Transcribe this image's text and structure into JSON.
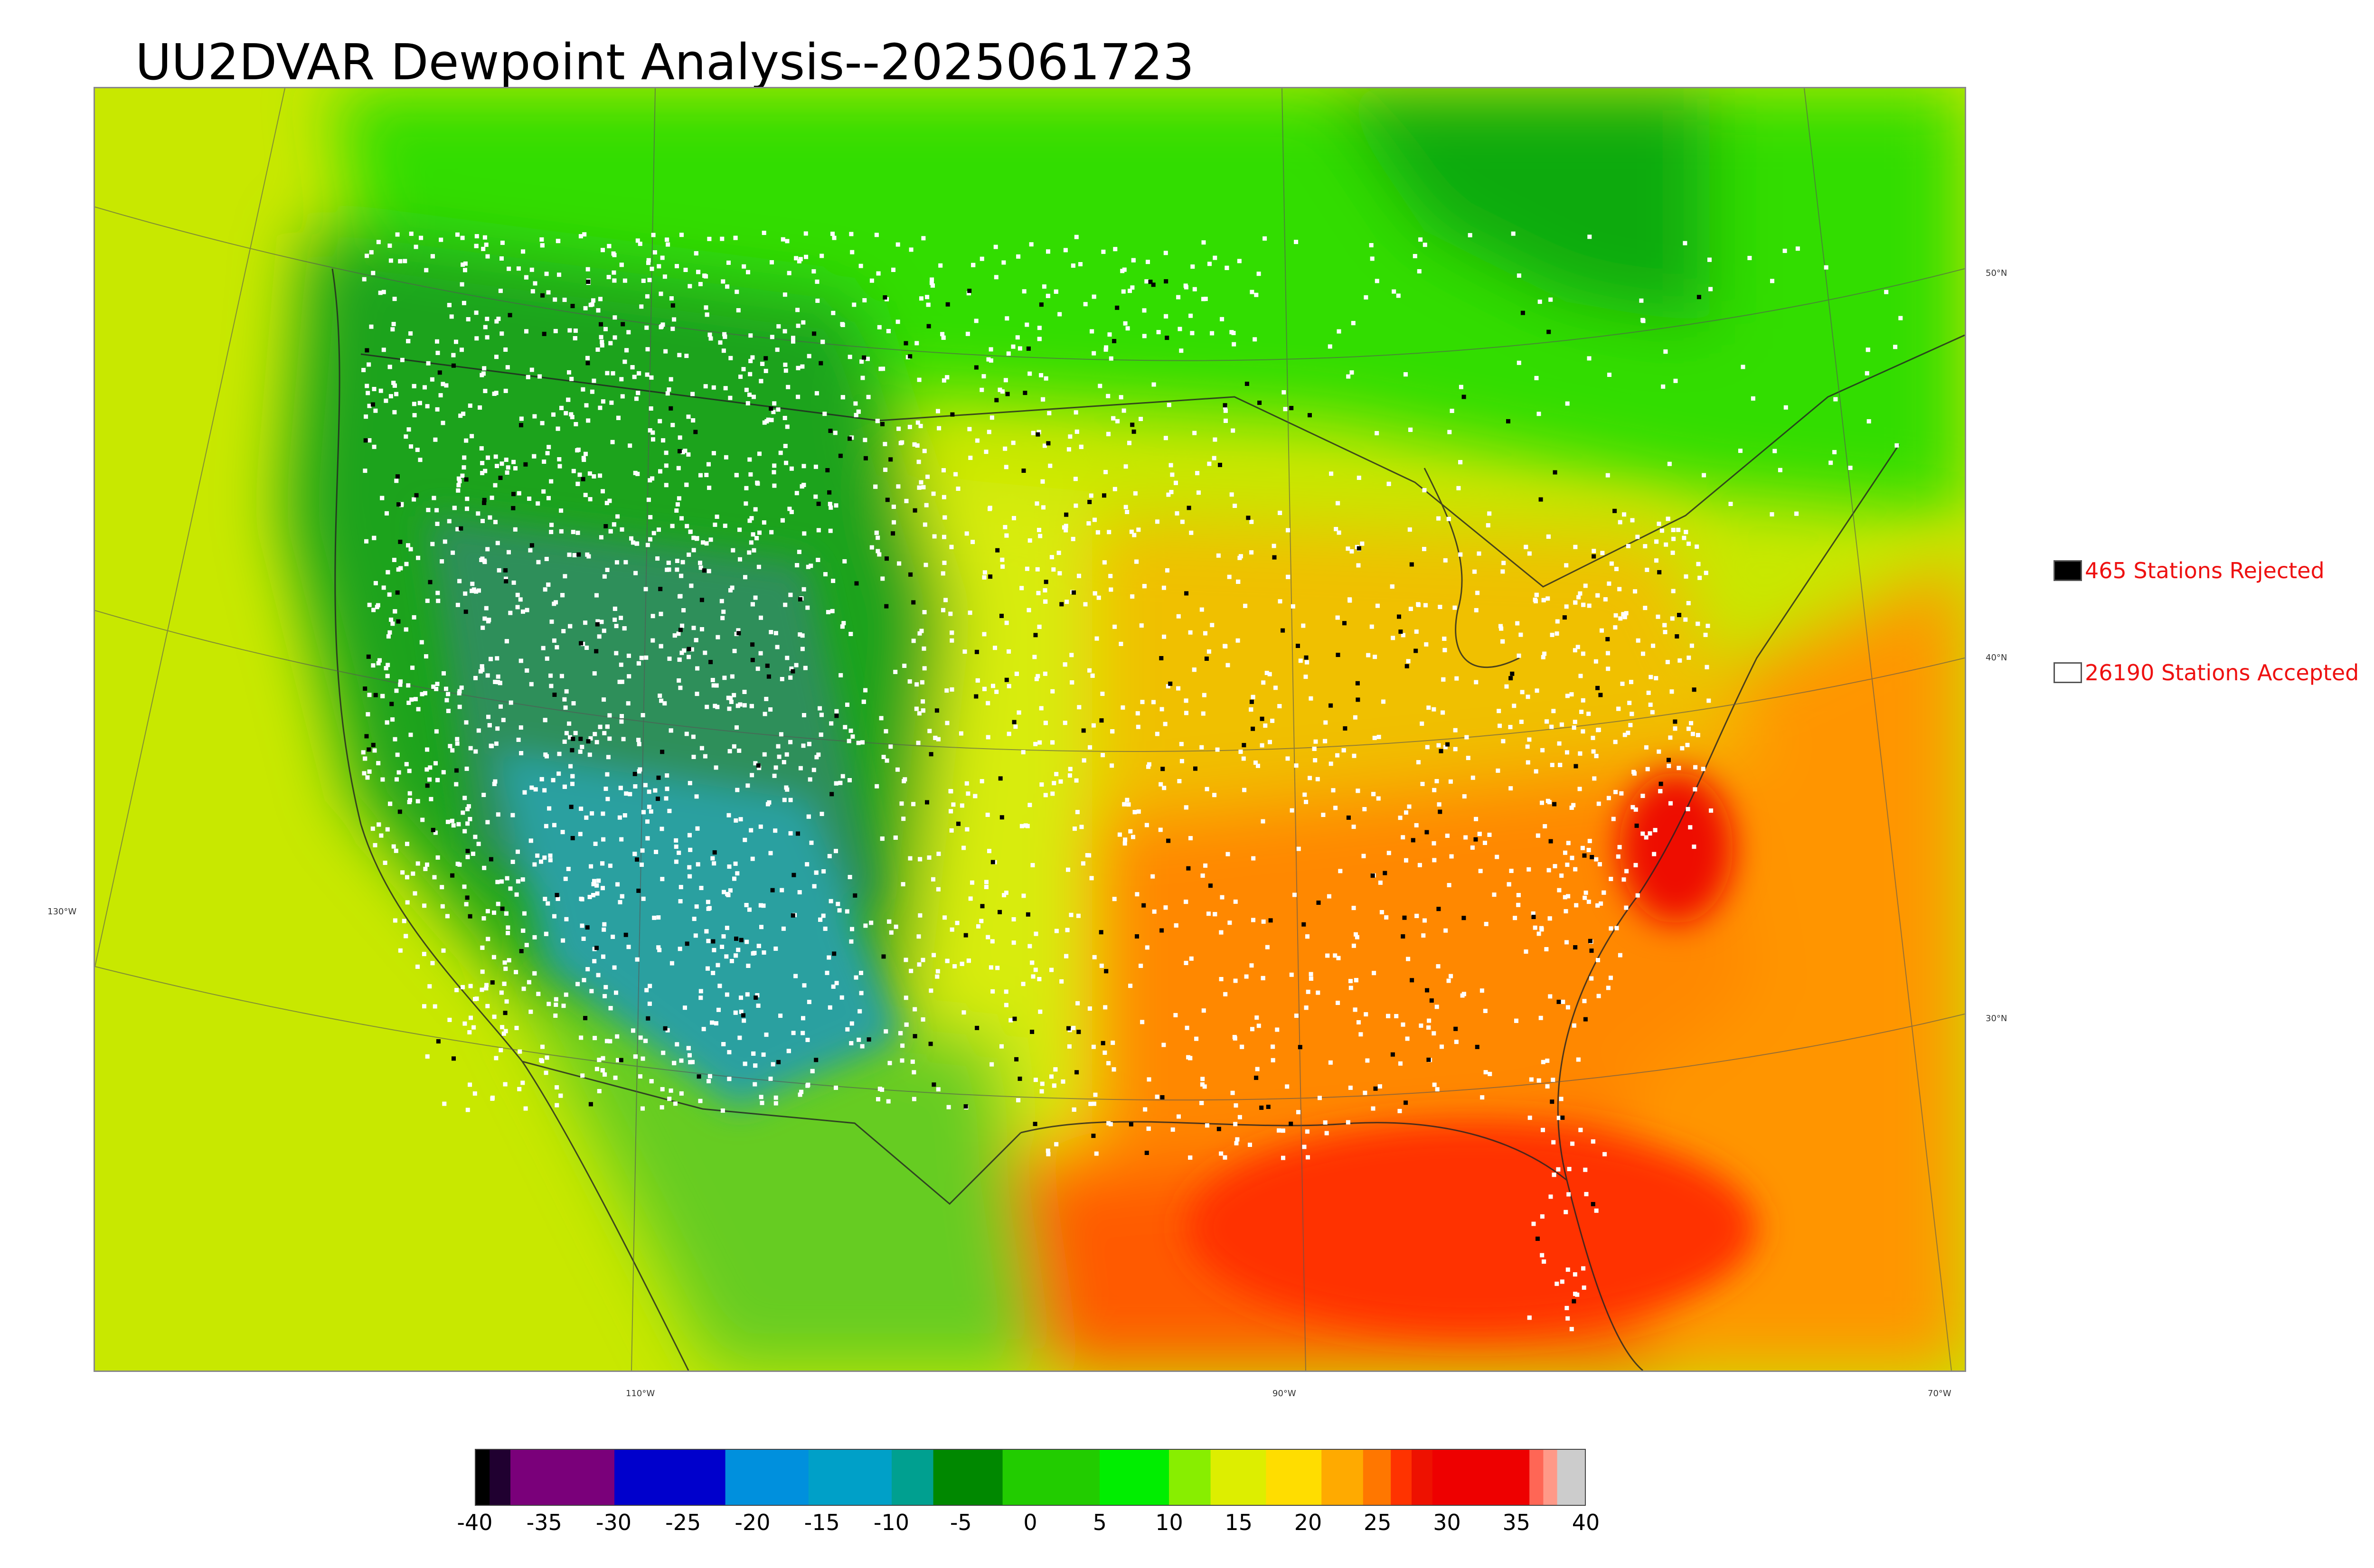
{
  "title": "UU2DVAR Dewpoint Analysis--2025061723",
  "legend": {
    "rejected": {
      "label": "465 Stations Rejected",
      "swatch_color": "#000000"
    },
    "accepted": {
      "label": "26190 Stations Accepted",
      "swatch_color": "#ffffff"
    }
  },
  "map": {
    "latitude_labels": [
      "50°N",
      "40°N",
      "30°N"
    ],
    "longitude_labels": [
      "130°W",
      "110°W",
      "90°W",
      "70°W"
    ],
    "field_colors": {
      "pacific": "#c8e800",
      "northwest_land": "#1fa31f",
      "great_basin": "#2f8f5a",
      "four_corners": "#2aa0a0",
      "plains": "#d8ec10",
      "midwest": "#f0c000",
      "southeast": "#ff8800",
      "gulf": "#ff5a00",
      "atlantic": "#ff9500",
      "canada": "#33dd00",
      "hudson": "#11aa11",
      "mexico": "#66cc22"
    }
  },
  "colorbar": {
    "ticks": [
      "-40",
      "-35",
      "-30",
      "-25",
      "-20",
      "-15",
      "-10",
      "-5",
      "0",
      "5",
      "10",
      "15",
      "20",
      "25",
      "30",
      "35",
      "40"
    ],
    "range": [
      -40,
      40
    ],
    "segments": [
      {
        "from": -40,
        "to": -39,
        "color": "#000000"
      },
      {
        "from": -39,
        "to": -37.5,
        "color": "#200030"
      },
      {
        "from": -37.5,
        "to": -30,
        "color": "#7a007a"
      },
      {
        "from": -30,
        "to": -22,
        "color": "#0000cc"
      },
      {
        "from": -22,
        "to": -16,
        "color": "#0090dd"
      },
      {
        "from": -16,
        "to": -10,
        "color": "#00a0c8"
      },
      {
        "from": -10,
        "to": -7,
        "color": "#00a090"
      },
      {
        "from": -7,
        "to": -2,
        "color": "#008800"
      },
      {
        "from": -2,
        "to": 5,
        "color": "#22cc00"
      },
      {
        "from": 5,
        "to": 10,
        "color": "#00ee00"
      },
      {
        "from": 10,
        "to": 13,
        "color": "#88ee00"
      },
      {
        "from": 13,
        "to": 17,
        "color": "#ddee00"
      },
      {
        "from": 17,
        "to": 21,
        "color": "#ffdd00"
      },
      {
        "from": 21,
        "to": 24,
        "color": "#ffaa00"
      },
      {
        "from": 24,
        "to": 26,
        "color": "#ff7700"
      },
      {
        "from": 26,
        "to": 27.5,
        "color": "#ff3300"
      },
      {
        "from": 27.5,
        "to": 29,
        "color": "#ee1100"
      },
      {
        "from": 29,
        "to": 36,
        "color": "#ee0000"
      },
      {
        "from": 36,
        "to": 37,
        "color": "#ff6655"
      },
      {
        "from": 37,
        "to": 38,
        "color": "#ff9988"
      },
      {
        "from": 38,
        "to": 40,
        "color": "#cccccc"
      }
    ]
  }
}
